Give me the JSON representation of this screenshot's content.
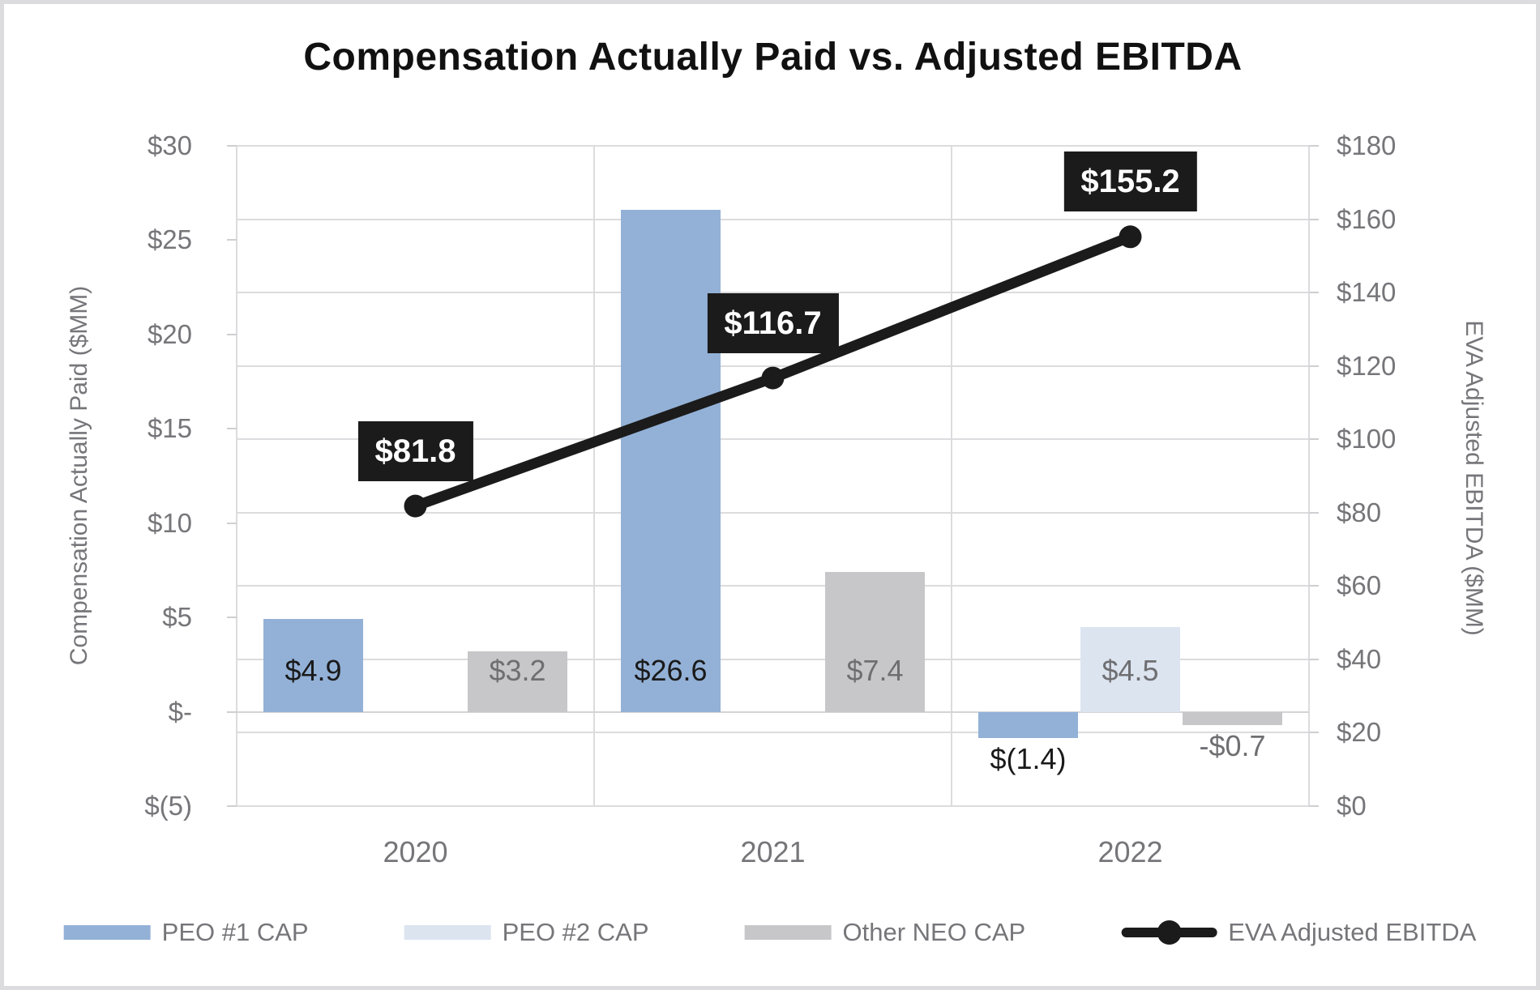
{
  "chart_data": {
    "type": "bar+line",
    "title": "Compensation Actually Paid vs. Adjusted EBITDA",
    "categories": [
      "2020",
      "2021",
      "2022"
    ],
    "left_axis": {
      "title": "Compensation Actually Paid ($MM)",
      "min": -5,
      "max": 30,
      "step": 5,
      "tick_labels": [
        "$30",
        "$25",
        "$20",
        "$15",
        "$10",
        "$5",
        "$-",
        "$(5)"
      ]
    },
    "right_axis": {
      "title": "EVA Adjusted EBITDA ($MM)",
      "min": 0,
      "max": 180,
      "step": 20,
      "tick_labels": [
        "$180",
        "$160",
        "$140",
        "$120",
        "$100",
        "$80",
        "$60",
        "$40",
        "$20",
        "$0"
      ]
    },
    "grid": {
      "horizontal": "right-axis-major",
      "vertical": "category-boundaries",
      "color": "#dcdcde"
    },
    "series": [
      {
        "name": "PEO #1 CAP",
        "type": "bar",
        "axis": "left",
        "color": "#93b1d7",
        "values": [
          4.9,
          26.6,
          -1.4
        ],
        "labels": [
          "$4.9",
          "$26.6",
          "$(1.4)"
        ],
        "label_color": "#1a1a1a"
      },
      {
        "name": "PEO #2 CAP",
        "type": "bar",
        "axis": "left",
        "color": "#dce4f0",
        "values": [
          null,
          null,
          4.5
        ],
        "labels": [
          null,
          null,
          "$4.5"
        ],
        "label_color": "#6f6f72"
      },
      {
        "name": "Other NEO CAP",
        "type": "bar",
        "axis": "left",
        "color": "#c7c7c9",
        "values": [
          3.2,
          7.4,
          -0.7
        ],
        "labels": [
          "$3.2",
          "$7.4",
          "-$0.7"
        ],
        "label_color": "#6f6f72"
      },
      {
        "name": "EVA Adjusted EBITDA",
        "type": "line",
        "axis": "right",
        "color": "#1b1b1b",
        "values": [
          81.8,
          116.7,
          155.2
        ],
        "labels": [
          "$81.8",
          "$116.7",
          "$155.2"
        ],
        "label_style": {
          "background": "#1b1b1b",
          "text": "#ffffff"
        }
      }
    ],
    "legend_position": "bottom"
  }
}
